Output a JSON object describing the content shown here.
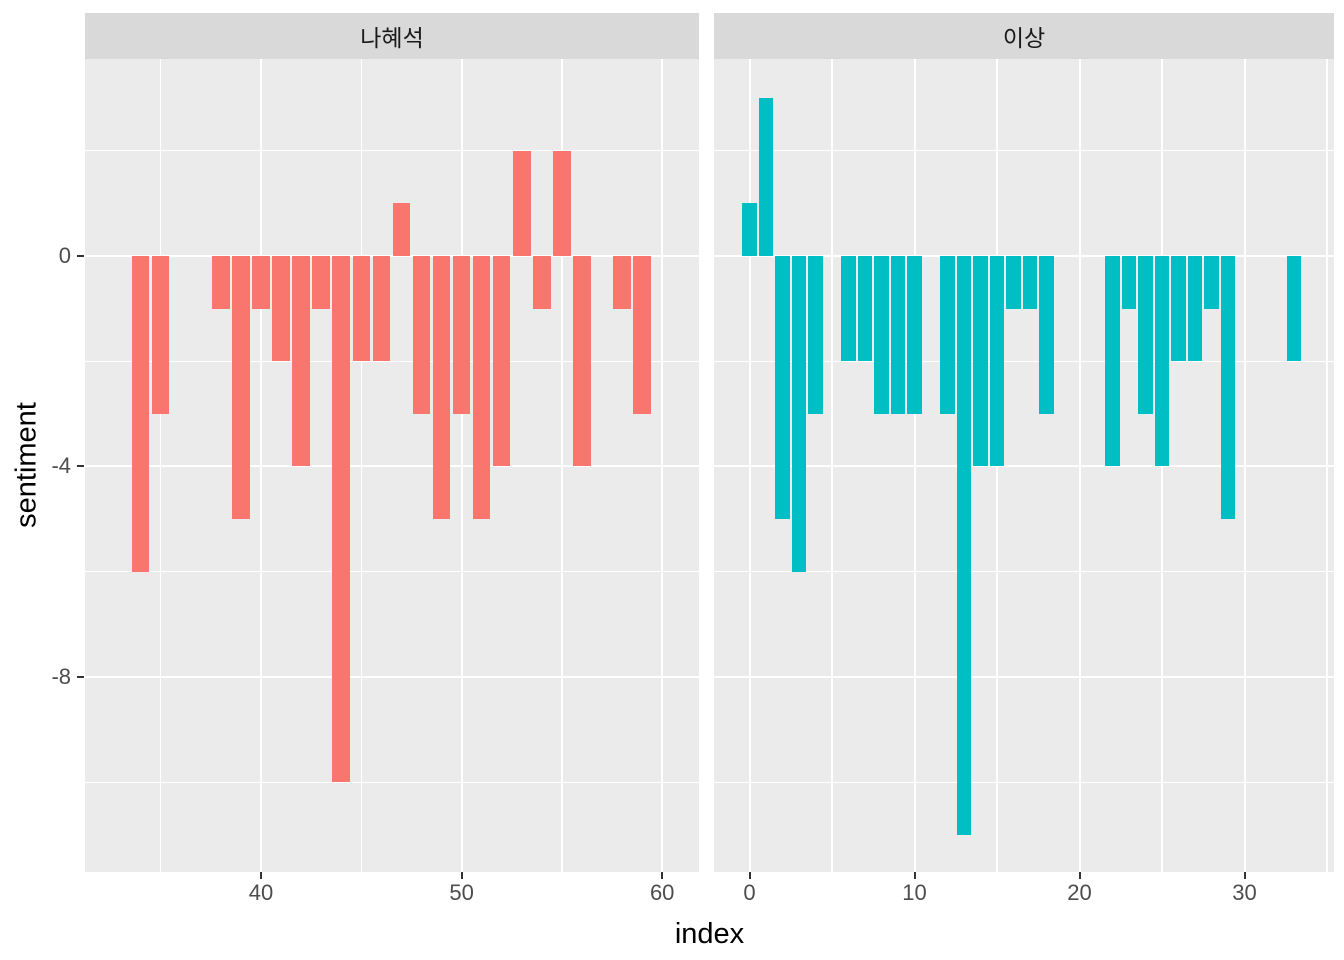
{
  "chart_data": {
    "type": "bar",
    "title": "",
    "xlabel": "index",
    "ylabel": "sentiment",
    "ylim": [
      -11.7,
      3.7
    ],
    "y_major_ticks": [
      0,
      -4,
      -8
    ],
    "y_minor_gridlines": [
      2,
      -2,
      -6,
      -10
    ],
    "grid": true,
    "legend": "none",
    "facets": [
      {
        "label": "나혜석",
        "bar_color": "#F8766D",
        "x_major_ticks": [
          40,
          50,
          60
        ],
        "x_minor_gridlines": [
          35,
          45,
          55
        ],
        "xlim": [
          31.2,
          61.6
        ],
        "index": [
          34,
          35,
          38,
          39,
          40,
          41,
          42,
          43,
          44,
          45,
          46,
          47,
          48,
          49,
          50,
          51,
          52,
          53,
          54,
          55,
          56,
          58,
          59
        ],
        "sentiment": [
          -6,
          -3,
          -1,
          -5,
          -1,
          -2,
          -4,
          -1,
          -10,
          -2,
          -2,
          1,
          -3,
          -5,
          -3,
          -5,
          -4,
          2,
          -1,
          2,
          -4,
          -1,
          -3
        ]
      },
      {
        "label": "이상",
        "bar_color": "#00BFC4",
        "x_major_ticks": [
          0,
          10,
          20,
          30
        ],
        "x_minor_gridlines": [
          5,
          15,
          25,
          35
        ],
        "xlim": [
          -2.2,
          35.4
        ],
        "index": [
          0,
          1,
          2,
          3,
          4,
          6,
          7,
          8,
          9,
          10,
          12,
          13,
          14,
          15,
          16,
          17,
          18,
          22,
          23,
          24,
          25,
          26,
          27,
          28,
          29,
          33
        ],
        "sentiment": [
          1,
          3,
          -5,
          -6,
          -3,
          -2,
          -2,
          -3,
          -3,
          -3,
          -3,
          -11,
          -4,
          -4,
          -1,
          -1,
          -3,
          -4,
          -1,
          -3,
          -4,
          -2,
          -2,
          -1,
          -5,
          -2
        ]
      }
    ]
  },
  "style": {
    "background": "#FFFFFF",
    "panel_background": "#EBEBEB",
    "strip_background": "#D9D9D9",
    "gridline_color": "#FFFFFF",
    "axis_text_color": "#4D4D4D",
    "strip_text_color": "#1A1A1A",
    "axis_title_color": "#000000",
    "tick_mark_color": "#333333"
  }
}
